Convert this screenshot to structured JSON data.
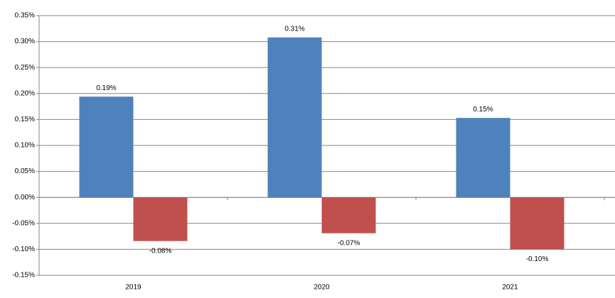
{
  "chart_data": {
    "type": "bar",
    "categories": [
      "2019",
      "2020",
      "2021"
    ],
    "series": [
      {
        "color": "#4f81bd",
        "values": [
          0.194,
          0.308,
          0.153
        ],
        "value_labels": [
          "0.19%",
          "0.31%",
          "0.15%"
        ]
      },
      {
        "color": "#c0504d",
        "values": [
          -0.084,
          -0.069,
          -0.1
        ],
        "value_labels": [
          "-0.08%",
          "-0.07%",
          "-0.10%"
        ]
      }
    ],
    "ylim": [
      -0.15,
      0.35
    ],
    "yticks": [
      {
        "value": -0.15,
        "label": "-0.15%"
      },
      {
        "value": -0.1,
        "label": "-0.10%"
      },
      {
        "value": -0.05,
        "label": "-0.05%"
      },
      {
        "value": 0,
        "label": "0.00%"
      },
      {
        "value": 0.05,
        "label": "0.05%"
      },
      {
        "value": 0.1,
        "label": "0.10%"
      },
      {
        "value": 0.15,
        "label": "0.15%"
      },
      {
        "value": 0.2,
        "label": "0.20%"
      },
      {
        "value": 0.25,
        "label": "0.25%"
      },
      {
        "value": 0.3,
        "label": "0.30%"
      },
      {
        "value": 0.35,
        "label": "0.35%"
      }
    ],
    "grid": true
  }
}
